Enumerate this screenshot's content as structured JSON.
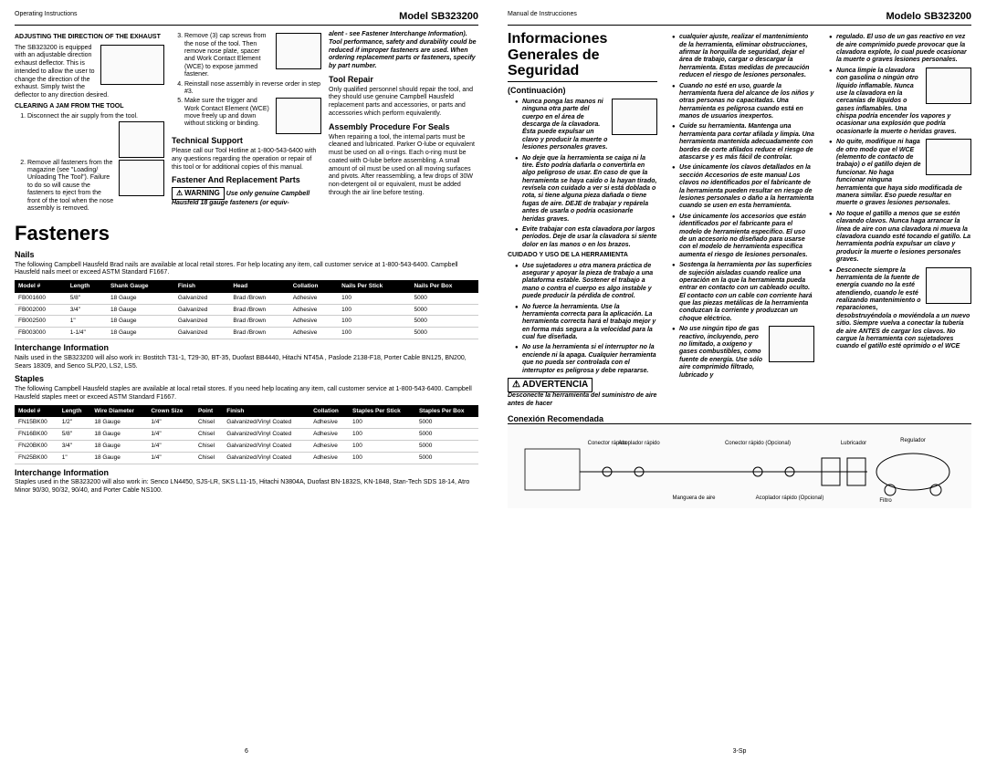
{
  "left": {
    "header_left": "Operating Instructions",
    "header_right": "Model SB323200",
    "pagenum": "6",
    "col1": {
      "adjusting_head": "ADJUSTING THE DIRECTION OF THE EXHAUST",
      "adjusting_body": "The SB323200 is equipped with an adjustable direction exhaust deflector. This is intended to allow the user to change the direction of the exhaust. Simply twist the deflector to any direction desired.",
      "clearing_head": "CLEARING A JAM FROM THE TOOL",
      "step1": "Disconnect the air supply from the tool.",
      "step2": "Remove all fasteners from the magazine (see \"Loading/ Unloading The Tool\"). Failure to do so will cause the fasteners to eject from the front of the tool when the nose assembly is removed."
    },
    "col2": {
      "step3": "Remove (3) cap screws from the nose of the tool. Then remove nose plate, spacer and Work Contact Element (WCE) to expose jammed fastener.",
      "step4": "Reinstall nose assembly in reverse order in step #3.",
      "step5": "Make sure the trigger and Work Contact Element (WCE) move freely up and down without sticking or binding.",
      "tech_head": "Technical Support",
      "tech_body": "Please call our Tool Hotline at 1-800-543-6400 with any questions regarding the operation or repair of this tool or for additional copies of this manual.",
      "fast_head": "Fastener And Replacement Parts",
      "warn_label": "WARNING",
      "warn_body_a": "Use only genuine Campbell Hausfeld 18 gauge fasteners (or equiv-"
    },
    "col3": {
      "warn_cont": "alent - see Fastener Interchange Information). Tool performance, safety and durability could be reduced if improper fasteners are used. When ordering replacement parts or fasteners, specify by part number.",
      "repair_head": "Tool Repair",
      "repair_body": "Only qualified personnel should repair the tool, and they should use genuine Campbell Hausfeld replacement parts and accessories, or parts and accessories which perform equivalently.",
      "assy_head": "Assembly Procedure For Seals",
      "assy_body": "When repairing a tool, the internal parts must be cleaned and lubricated. Parker O-lube or equivalent must be used on all o-rings. Each o-ring must be coated with O-lube before assembling. A small amount of oil must be used on all moving surfaces and pivots. After reassembling, a few drops of 30W non-detergent oil or equivalent, must be added through the air line before testing."
    },
    "fasteners": {
      "title": "Fasteners",
      "nails_head": "Nails",
      "nails_body": "The following Campbell Hausfeld Brad nails are available at local retail stores. For help locating any item, call customer service at 1-800-543-6400. Campbell Hausfeld nails meet or exceed ASTM Standard F1667.",
      "nails_cols": [
        "Model #",
        "Length",
        "Shank Gauge",
        "Finish",
        "Head",
        "Collation",
        "Nails Per Stick",
        "Nails Per Box"
      ],
      "nails_rows": [
        [
          "FB001600",
          "5/8\"",
          "18 Gauge",
          "Galvanized",
          "Brad /Brown",
          "Adhesive",
          "100",
          "5000"
        ],
        [
          "FB002000",
          "3/4\"",
          "18 Gauge",
          "Galvanized",
          "Brad /Brown",
          "Adhesive",
          "100",
          "5000"
        ],
        [
          "FB002500",
          "1\"",
          "18 Gauge",
          "Galvanized",
          "Brad /Brown",
          "Adhesive",
          "100",
          "5000"
        ],
        [
          "FB003000",
          "1-1/4\"",
          "18 Gauge",
          "Galvanized",
          "Brad /Brown",
          "Adhesive",
          "100",
          "5000"
        ]
      ],
      "inter1_head": "Interchange Information",
      "inter1_body": "Nails used in the SB323200 will also work in: Bostitch T31-1, T29-30, BT-35, Duofast BB4440, Hitachi NT45A , Paslode 2138-F18, Porter Cable BN125, BN200, Sears 18309, and Senco SLP20, LS2, LS5.",
      "staples_head": "Staples",
      "staples_body": "The following Campbell Hausfeld staples are available at local retail stores. If you need help locating any item, call customer service at 1-800-543-6400. Campbell Hausfeld staples meet or exceed ASTM Standard F1667.",
      "staples_cols": [
        "Model #",
        "Length",
        "Wire Diameter",
        "Crown Size",
        "Point",
        "Finish",
        "Collation",
        "Staples Per Stick",
        "Staples Per Box"
      ],
      "staples_rows": [
        [
          "FN15BK00",
          "1/2\"",
          "18 Gauge",
          "1/4\"",
          "Chisel",
          "Galvanized/Vinyl Coated",
          "Adhesive",
          "100",
          "5000"
        ],
        [
          "FN16BK00",
          "5/8\"",
          "18 Gauge",
          "1/4\"",
          "Chisel",
          "Galvanized/Vinyl Coated",
          "Adhesive",
          "100",
          "5000"
        ],
        [
          "FN20BK00",
          "3/4\"",
          "18 Gauge",
          "1/4\"",
          "Chisel",
          "Galvanized/Vinyl Coated",
          "Adhesive",
          "100",
          "5000"
        ],
        [
          "FN25BK00",
          "1\"",
          "18 Gauge",
          "1/4\"",
          "Chisel",
          "Galvanized/Vinyl Coated",
          "Adhesive",
          "100",
          "5000"
        ]
      ],
      "inter2_head": "Interchange Information",
      "inter2_body": "Staples used in the SB323200 will also work in: Senco LN4450, SJS-LR, SKS L11-15, Hitachi N3804A, Duofast BN-1832S, KN-1848, Stan-Tech SDS 18-14, Atro Minor 90/30, 90/32, 90/40, and Porter Cable NS100."
    }
  },
  "right": {
    "header_left": "Manual de Instrucciones",
    "header_right": "Modelo SB323200",
    "pagenum": "3-Sp",
    "title1": "Informaciones",
    "title2": "Generales de Seguridad",
    "cont": "(Continuación)",
    "col1_items": [
      "Nunca ponga las manos ni ninguna otra parte del cuerpo en el área de descarga de la clavadora. Ésta puede expulsar un clavo y producir la muerte o lesiones personales graves.",
      "No deje que la herramienta se caiga ni la tire. Ésto podría dañarla o convertirla en algo peligroso de usar. En caso de que la herramienta se haya caido o la hayan tirado, revísela con cuidado a ver si está doblada o rota, si tiene alguna pieza dañada o tiene fugas de aire. DEJE de trabajar y repárela antes de usarla o podría ocasionarle heridas graves.",
      "Evite trabajar con esta clavadora por largos períodos. Deje de usar la clavadora si siente dolor en las manos o en los brazos."
    ],
    "cuidado_head": "CUIDADO Y USO DE LA HERRAMIENTA",
    "col1b_items": [
      "Use sujetadores u otra manera práctica de asegurar y apoyar la pieza de trabajo a una plataforma estable. Sostener el trabajo a mano o contra el cuerpo es algo instable y puede producir la pérdida de control.",
      "No fuerce la herramienta. Use la herramienta correcta para la aplicación. La herramienta correcta hará el trabajo mejor y en forma más segura a la velocidad para la cual fue diseñada.",
      "No use la herramienta si el interruptor no la enciende ni la apaga. Cualquier herramienta que no pueda ser controlada con el interruptor es peligrosa y debe repararse."
    ],
    "warn_label": "ADVERTENCIA",
    "warn_body": "Desconecte la herramienta del suministro de aire antes de hacer",
    "col2_items": [
      "cualquier ajuste, realizar el mantenimiento de la herramienta, eliminar obstrucciones, afirmar la horquilla de seguridad, dejar el área de trabajo, cargar o descargar la herramienta. Estas medidas de precaución reducen el riesgo de lesiones personales.",
      "Cuando no esté en uso, guarde la herramienta fuera del alcance de los niños y otras personas no capacitadas. Una herramienta es peligrosa cuando está en manos de usuarios inexpertos.",
      "Cuide su herramienta. Mantenga una herramienta para cortar afilada y limpia. Una herramienta mantenida adecuadamente con bordes de corte afilados reduce el riesgo de atascarse y es más fácil de controlar.",
      "Use únicamente los clavos detallados en la sección Accesorios de este manual Los clavos no identificados por el fabricante de la herramienta pueden resultar en riesgo de lesiones personales o daño a la herramienta cuando se usen en esta herramienta.",
      "Use únicamente los accesorios que están identificados por el fabricante para el modelo de herramienta específico. El uso de un accesorio no diseñado para usarse con el modelo de herramienta específica aumenta el riesgo de lesiones personales.",
      "Sostenga la herramienta por las superficies de sujeción aisladas cuando realice una operación en la que la herramienta pueda entrar en contacto con un cableado oculto. El contacto con un cable con corriente hará que las piezas metálicas de la herramienta conduzcan la corriente y produzcan un choque eléctrico.",
      "No use ningún tipo de gas reactivo, incluyendo, pero no limitado, a oxígeno y gases combustibles, como fuente de energía. Use sólo aire comprimido filtrado, lubricado y"
    ],
    "col3_items": [
      "regulado. El uso de un gas reactivo en vez de aire comprimido puede provocar que la clavadora explote, lo cual puede ocasionar la muerte o graves lesiones personales.",
      "Nunca limpie la clavadora con gasolina o ningún otro líquido inflamable. Nunca use la clavadora en la cercanías de líquidos o gases inflamables. Una chispa podría encender los vapores y ocasionar una explosión que podría ocasionarle la muerte o heridas graves.",
      "No quite, modifique ni haga de otro modo que el WCE (elemento de contacto de trabajo) o el gatillo dejen de funcionar. No haga funcionar ninguna herramienta que haya sido modificada de manera similar. Eso puede resultar en muerte o graves lesiones personales.",
      "No toque el gatillo a menos que se estén clavando clavos. Nunca haga arrancar la línea de aire con una clavadora ni mueva la clavadora cuando esté tocando el gatillo. La herramienta podría expulsar un clavo y producir la muerte o lesiones personales graves.",
      "Desconecte siempre la herramienta de la fuente de energía cuando no la esté atendiendo, cuando le esté realizando mantenimiento o reparaciones, desobstruyéndola o moviéndola a un nuevo sitio. Siempre vuelva a conectar la tubería de aire ANTES de cargar los clavos. No cargue la herramienta con sujetadores cuando el gatillo esté oprimido o el WCE"
    ],
    "conex_head": "Conexión Recomendada",
    "conex_labels": [
      "Conector rápido",
      "Acoplador rápido",
      "Conector rápido (Opcional)",
      "Regulador",
      "Lubricador",
      "Manguera de aire",
      "Acoplador rápido (Opcional)",
      "Filtro"
    ]
  }
}
